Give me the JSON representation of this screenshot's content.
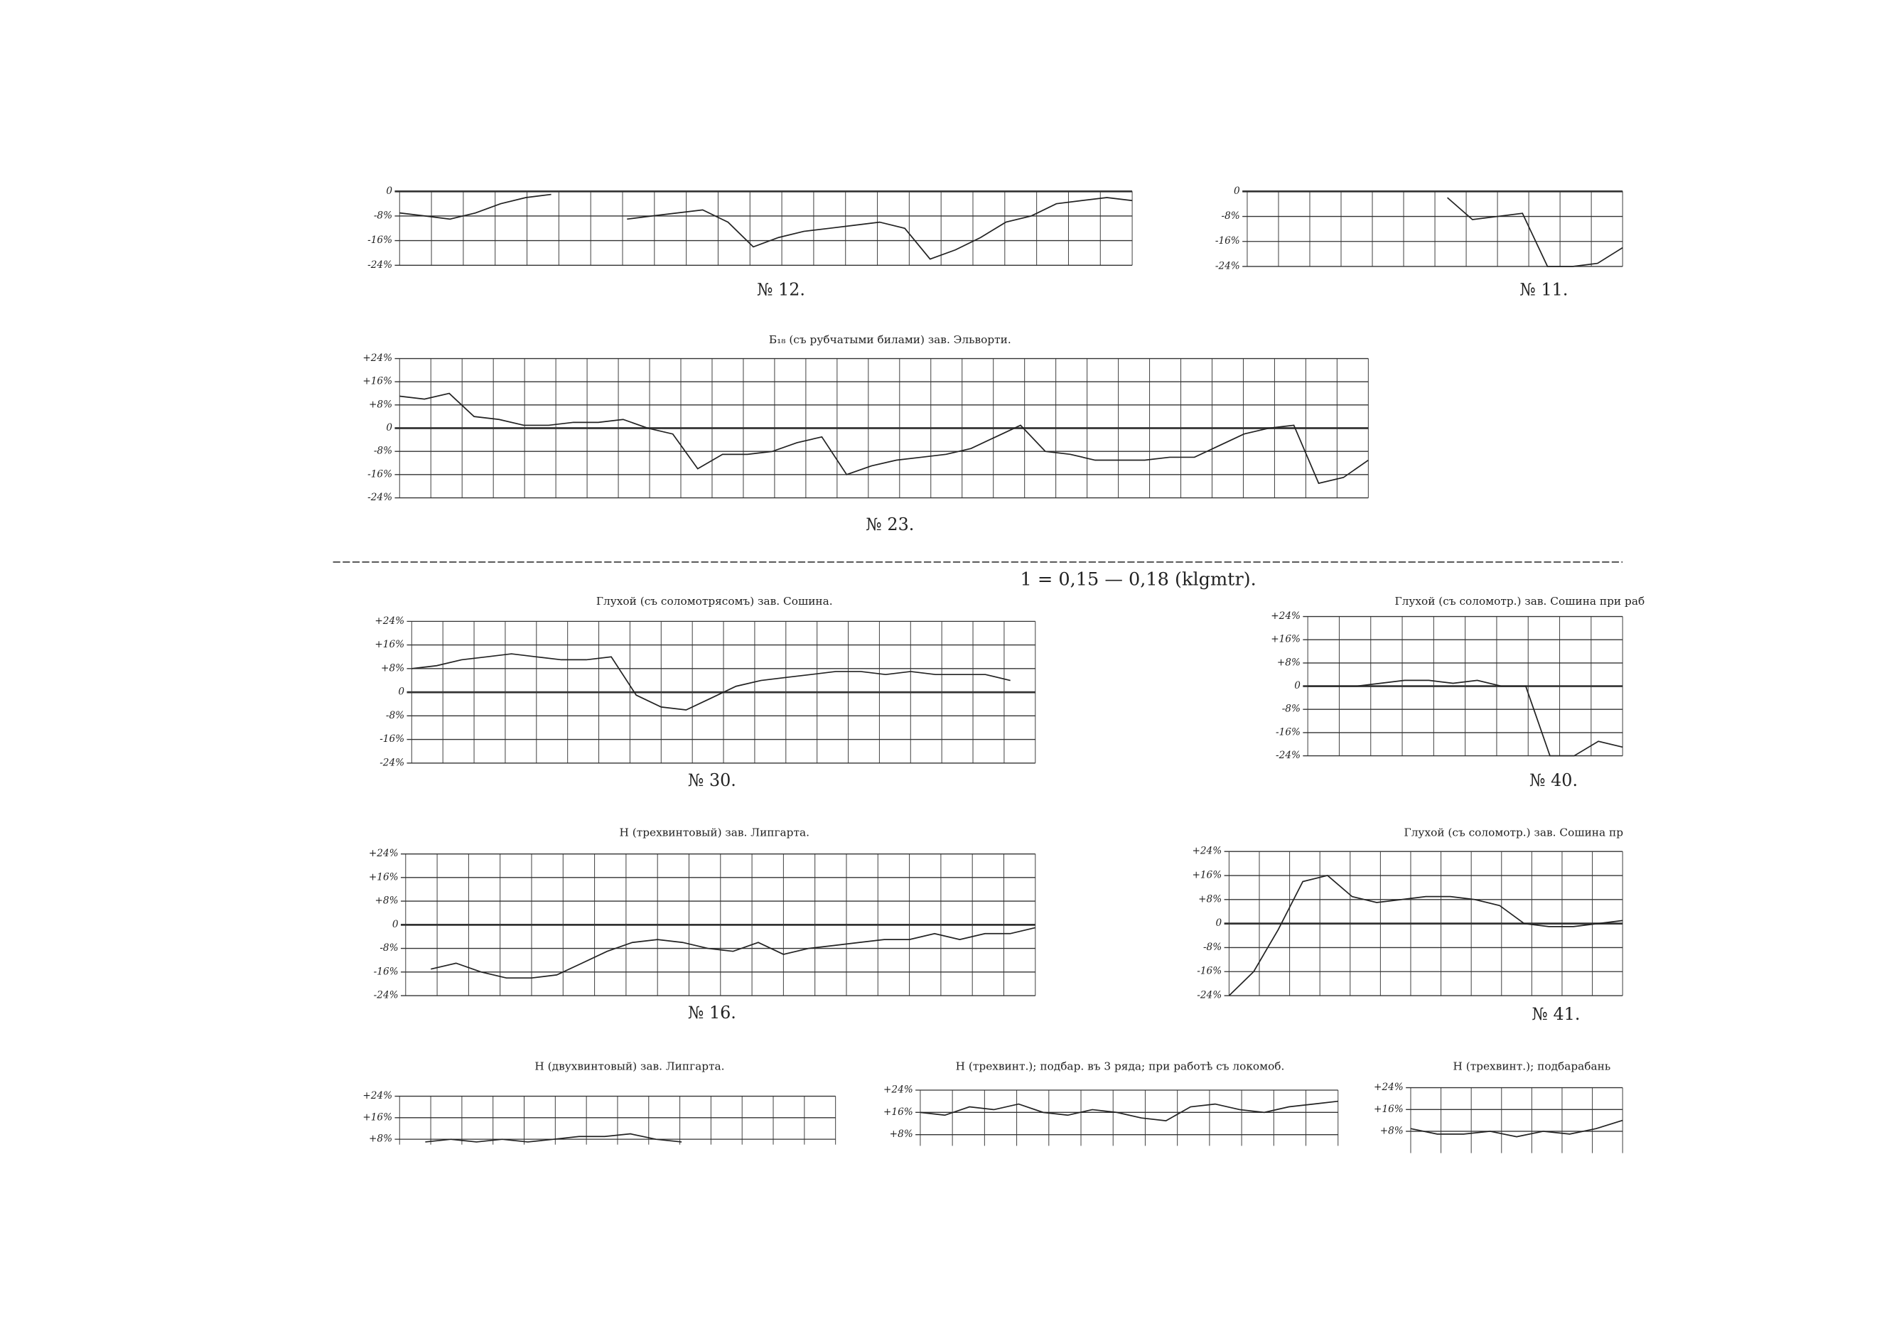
{
  "section_note": "1 = 0,15 — 0,18 (klgmtr).",
  "chart_data": [
    {
      "type": "line",
      "caption": "№ 12.",
      "color": "#222",
      "ylim": [
        -24,
        0
      ],
      "yticks": [
        0,
        {
          "value": -8,
          "label": "-8%"
        },
        {
          "value": -16,
          "label": "-16%"
        },
        {
          "value": -24,
          "label": "-24%"
        }
      ],
      "values": [
        -7,
        -8,
        -9,
        -7,
        -4,
        -2,
        -1,
        null,
        null,
        -9,
        -8,
        -7,
        -6,
        -10,
        -18,
        -15,
        -13,
        -12,
        -11,
        -10,
        -12,
        -22,
        -19,
        -15,
        -10,
        -8,
        -4,
        -3,
        -2,
        -3
      ]
    },
    {
      "type": "line",
      "caption": "№ 11.",
      "color": "#222",
      "ylim": [
        -24,
        0
      ],
      "yticks": [
        0,
        {
          "value": -8,
          "label": "-8%"
        },
        {
          "value": -16,
          "label": "-16%"
        },
        {
          "value": -24,
          "label": "-24%"
        }
      ],
      "values": [
        null,
        null,
        null,
        null,
        null,
        null,
        null,
        null,
        -2,
        -9,
        -8,
        -7,
        -24,
        -24,
        -23,
        -18
      ]
    },
    {
      "type": "line",
      "title": "Б₁₈ (съ рубчатыми билами) зав. Эльворти.",
      "caption": "№ 23.",
      "color": "#222",
      "ylim": [
        -24,
        24
      ],
      "yticks": [
        {
          "value": 24,
          "label": "+24%"
        },
        {
          "value": 16,
          "label": "+16%"
        },
        {
          "value": 8,
          "label": "+8%"
        },
        0,
        {
          "value": -8,
          "label": "-8%"
        },
        {
          "value": -16,
          "label": "-16%"
        },
        {
          "value": -24,
          "label": "-24%"
        }
      ],
      "values": [
        11,
        10,
        12,
        4,
        3,
        1,
        1,
        2,
        2,
        3,
        0,
        -2,
        -14,
        -9,
        -9,
        -8,
        -5,
        -3,
        -16,
        -13,
        -11,
        -10,
        -9,
        -7,
        -3,
        1,
        -8,
        -9,
        -11,
        -11,
        -11,
        -10,
        -10,
        -6,
        -2,
        0,
        1,
        -19,
        -17,
        -11
      ]
    },
    {
      "type": "line",
      "title": "Глухой (съ соломотрясомъ) зав. Сошина.",
      "caption": "№ 30.",
      "color": "#222",
      "ylim": [
        -24,
        24
      ],
      "yticks": [
        {
          "value": 24,
          "label": "+24%"
        },
        {
          "value": 16,
          "label": "+16%"
        },
        {
          "value": 8,
          "label": "+8%"
        },
        0,
        {
          "value": -8,
          "label": "-8%"
        },
        {
          "value": -16,
          "label": "-16%"
        },
        {
          "value": -24,
          "label": "-24%"
        }
      ],
      "values": [
        8,
        9,
        11,
        12,
        13,
        12,
        11,
        11,
        12,
        -1,
        -5,
        -6,
        -2,
        2,
        4,
        5,
        6,
        7,
        7,
        6,
        7,
        6,
        6,
        6,
        4,
        null
      ]
    },
    {
      "type": "line",
      "title": "Глухой (съ соломотр.) зав. Сошина при раб",
      "caption": "№ 40.",
      "color": "#222",
      "ylim": [
        -24,
        24
      ],
      "yticks": [
        {
          "value": 24,
          "label": "+24%"
        },
        {
          "value": 16,
          "label": "+16%"
        },
        {
          "value": 8,
          "label": "+8%"
        },
        0,
        {
          "value": -8,
          "label": "-8%"
        },
        {
          "value": -16,
          "label": "-16%"
        },
        {
          "value": -24,
          "label": "-24%"
        }
      ],
      "values": [
        0,
        0,
        0,
        1,
        2,
        2,
        1,
        2,
        0,
        0,
        -24,
        -24,
        -19,
        -21
      ]
    },
    {
      "type": "line",
      "title": "Н (трехвинтовый) зав. Липгарта.",
      "caption": "№ 16.",
      "color": "#222",
      "ylim": [
        -24,
        24
      ],
      "yticks": [
        {
          "value": 24,
          "label": "+24%"
        },
        {
          "value": 16,
          "label": "+16%"
        },
        {
          "value": 8,
          "label": "+8%"
        },
        0,
        {
          "value": -8,
          "label": "-8%"
        },
        {
          "value": -16,
          "label": "-16%"
        },
        {
          "value": -24,
          "label": "-24%"
        }
      ],
      "values": [
        null,
        -15,
        -13,
        -16,
        -18,
        -18,
        -17,
        -13,
        -9,
        -6,
        -5,
        -6,
        -8,
        -9,
        -6,
        -10,
        -8,
        -7,
        -6,
        -5,
        -5,
        -3,
        -5,
        -3,
        -3,
        -1
      ]
    },
    {
      "type": "line",
      "title": "Глухой (съ соломотр.) зав. Сошина пр",
      "caption": "№ 41.",
      "color": "#222",
      "ylim": [
        -24,
        24
      ],
      "yticks": [
        {
          "value": 24,
          "label": "+24%"
        },
        {
          "value": 16,
          "label": "+16%"
        },
        {
          "value": 8,
          "label": "+8%"
        },
        0,
        {
          "value": -8,
          "label": "-8%"
        },
        {
          "value": -16,
          "label": "-16%"
        },
        {
          "value": -24,
          "label": "-24%"
        }
      ],
      "values": [
        -24,
        -16,
        -2,
        14,
        16,
        9,
        7,
        8,
        9,
        9,
        8,
        6,
        0,
        -1,
        -1,
        0,
        1
      ]
    },
    {
      "type": "line",
      "title": "Н (двухвинтовый) зав. Липгарта.",
      "color": "#222",
      "ylim": [
        6,
        24
      ],
      "yticks": [
        {
          "value": 24,
          "label": "+24%"
        },
        {
          "value": 16,
          "label": "+16%"
        },
        {
          "value": 8,
          "label": "+8%"
        }
      ],
      "values": [
        null,
        7,
        8,
        7,
        8,
        7,
        8,
        9,
        9,
        10,
        8,
        7,
        null,
        null,
        null,
        null,
        null,
        null
      ]
    },
    {
      "type": "line",
      "title": "Н (трехвинт.); подбар. въ 3 ряда; при работѣ съ локомоб.",
      "color": "#222",
      "ylim": [
        4,
        24
      ],
      "yticks": [
        {
          "value": 24,
          "label": "+24%"
        },
        {
          "value": 16,
          "label": "+16%"
        },
        {
          "value": 8,
          "label": "+8%"
        }
      ],
      "values": [
        16,
        15,
        18,
        17,
        19,
        16,
        15,
        17,
        16,
        14,
        13,
        18,
        19,
        17,
        16,
        18,
        19,
        20
      ]
    },
    {
      "type": "line",
      "title": "Н (трехвинт.); подбарабань",
      "color": "#222",
      "ylim": [
        0,
        24
      ],
      "yticks": [
        {
          "value": 24,
          "label": "+24%"
        },
        {
          "value": 16,
          "label": "+16%"
        },
        {
          "value": 8,
          "label": "+8%"
        }
      ],
      "values": [
        9,
        7,
        7,
        8,
        6,
        8,
        7,
        9,
        12
      ]
    }
  ]
}
